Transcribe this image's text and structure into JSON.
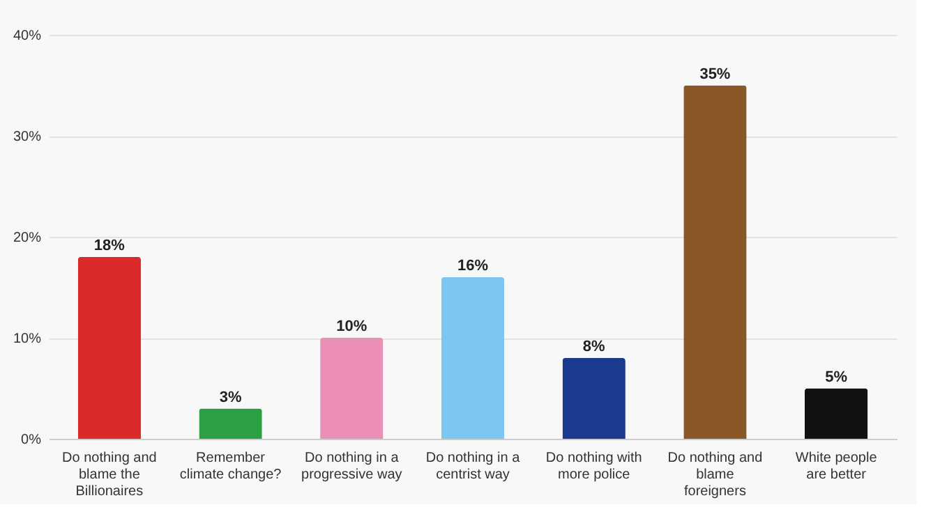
{
  "chart_data": {
    "type": "bar",
    "categories": [
      "Do nothing and blame the Billionaires",
      "Remember climate change?",
      "Do nothing in a progressive way",
      "Do nothing in a centrist way",
      "Do nothing with more police",
      "Do nothing and blame foreigners",
      "White people are better"
    ],
    "values": [
      18,
      3,
      10,
      16,
      8,
      35,
      5
    ],
    "value_labels": [
      "18%",
      "3%",
      "10%",
      "16%",
      "8%",
      "35%",
      "5%"
    ],
    "colors": [
      "#da2a2a",
      "#2c9f45",
      "#eb8fb7",
      "#7cc6ef",
      "#1b3a8d",
      "#8a5828",
      "#121212"
    ],
    "ylim": [
      0,
      40
    ],
    "yticks": [
      {
        "value": 0,
        "label": "0%"
      },
      {
        "value": 10,
        "label": "10%"
      },
      {
        "value": 20,
        "label": "20%"
      },
      {
        "value": 30,
        "label": "30%"
      },
      {
        "value": 40,
        "label": "40%"
      }
    ],
    "grid": "y",
    "legend": false
  }
}
